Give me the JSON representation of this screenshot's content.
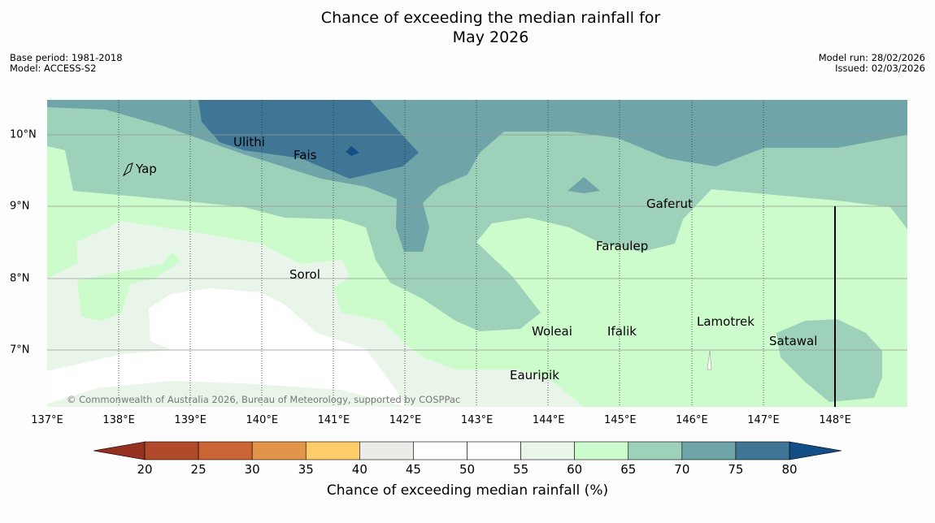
{
  "title_line1": "Chance of exceeding the median rainfall for",
  "title_line2": "May 2026",
  "base_period": "Base period: 1981-2018",
  "model": "Model: ACCESS-S2",
  "model_run": "Model run: 28/02/2026",
  "issued": "Issued: 02/03/2026",
  "copyright": "© Commonwealth of Australia 2026, Bureau of Meteorology, supported by COSPPac",
  "lon_ticks": [
    "137°E",
    "138°E",
    "139°E",
    "140°E",
    "141°E",
    "142°E",
    "143°E",
    "144°E",
    "145°E",
    "146°E",
    "147°E",
    "148°E"
  ],
  "lat_ticks": [
    "10°N",
    "9°N",
    "8°N",
    "7°N"
  ],
  "places": {
    "ulithi": "Ulithi",
    "fais": "Fais",
    "yap": "Yap",
    "gaferut": "Gaferut",
    "faraulep": "Faraulep",
    "sorol": "Sorol",
    "lamotrek": "Lamotrek",
    "woleai": "Woleai",
    "ifalik": "Ifalik",
    "satawal": "Satawal",
    "eauripik": "Eauripik"
  },
  "colorbar": {
    "title": "Chance of exceeding median rainfall (%)",
    "ticks": [
      "20",
      "25",
      "30",
      "35",
      "40",
      "45",
      "50",
      "55",
      "60",
      "65",
      "70",
      "75",
      "80"
    ],
    "colors": [
      "#b04a2a",
      "#cc6535",
      "#e29548",
      "#fecd69",
      "#ebebe8",
      "#ffffff",
      "#ffffff",
      "#eaf5ea",
      "#ccfccc",
      "#9ed1ba",
      "#6fa5a8",
      "#3f7696"
    ],
    "under_color": "#963020",
    "over_color": "#144e86"
  }
}
